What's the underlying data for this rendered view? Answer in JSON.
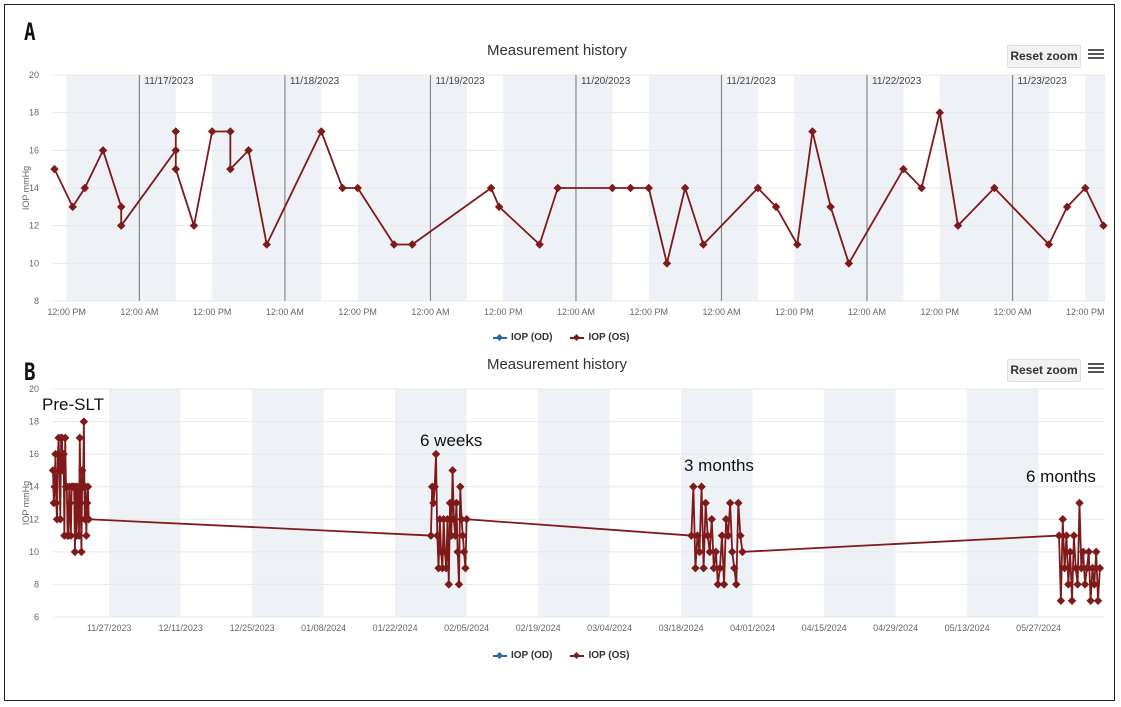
{
  "panels": [
    "A",
    "B"
  ],
  "colors": {
    "od": "#2b6a9e",
    "os": "#7f1a1a",
    "band": "#eef1f5",
    "grid": "#e8e8e8",
    "day_line": "#888888"
  },
  "chart_data": [
    {
      "type": "line",
      "title": "Measurement history",
      "ylabel": "IOP mmHg",
      "ylim": [
        8,
        20
      ],
      "yticks": [
        8,
        10,
        12,
        14,
        16,
        18,
        20
      ],
      "xlim": [
        "2023-11-16T09:45",
        "2023-11-23T15:15"
      ],
      "xtick_labels": [
        "12:00 PM",
        "12:00 AM",
        "12:00 PM",
        "12:00 AM",
        "12:00 PM",
        "12:00 AM",
        "12:00 PM",
        "12:00 AM",
        "12:00 PM",
        "12:00 AM",
        "12:00 PM",
        "12:00 AM",
        "12:00 PM",
        "12:00 AM",
        "12:00 PM"
      ],
      "date_labels": [
        "11/17/2023",
        "11/18/2023",
        "11/19/2023",
        "11/20/2023",
        "11/21/2023",
        "11/22/2023",
        "11/23/2023"
      ],
      "grid": true,
      "legend": {
        "position": "bottom",
        "entries": [
          "IOP (OD)",
          "IOP (OS)"
        ]
      },
      "reset_zoom_label": "Reset zoom",
      "series": [
        {
          "name": "IOP (OS)",
          "points": [
            [
              "2023-11-16T10:00",
              15
            ],
            [
              "2023-11-16T13:00",
              13
            ],
            [
              "2023-11-16T15:00",
              14
            ],
            [
              "2023-11-16T18:00",
              16
            ],
            [
              "2023-11-16T21:00",
              13
            ],
            [
              "2023-11-16T21:00",
              12
            ],
            [
              "2023-11-17T06:00",
              16
            ],
            [
              "2023-11-17T06:00",
              17
            ],
            [
              "2023-11-17T06:00",
              15
            ],
            [
              "2023-11-17T09:00",
              12
            ],
            [
              "2023-11-17T12:00",
              17
            ],
            [
              "2023-11-17T15:00",
              17
            ],
            [
              "2023-11-17T15:00",
              15
            ],
            [
              "2023-11-17T18:00",
              16
            ],
            [
              "2023-11-17T21:00",
              11
            ],
            [
              "2023-11-18T06:00",
              17
            ],
            [
              "2023-11-18T09:30",
              14
            ],
            [
              "2023-11-18T12:00",
              14
            ],
            [
              "2023-11-18T18:00",
              11
            ],
            [
              "2023-11-18T21:00",
              11
            ],
            [
              "2023-11-19T10:00",
              14
            ],
            [
              "2023-11-19T11:20",
              13
            ],
            [
              "2023-11-19T18:00",
              11
            ],
            [
              "2023-11-19T21:00",
              14
            ],
            [
              "2023-11-20T06:00",
              14
            ],
            [
              "2023-11-20T09:00",
              14
            ],
            [
              "2023-11-20T12:00",
              14
            ],
            [
              "2023-11-20T15:00",
              10
            ],
            [
              "2023-11-20T18:00",
              14
            ],
            [
              "2023-11-20T21:00",
              11
            ],
            [
              "2023-11-21T06:00",
              14
            ],
            [
              "2023-11-21T09:00",
              13
            ],
            [
              "2023-11-21T12:30",
              11
            ],
            [
              "2023-11-21T15:00",
              17
            ],
            [
              "2023-11-21T18:00",
              13
            ],
            [
              "2023-11-21T21:00",
              10
            ],
            [
              "2023-11-22T06:00",
              15
            ],
            [
              "2023-11-22T09:00",
              14
            ],
            [
              "2023-11-22T12:00",
              18
            ],
            [
              "2023-11-22T15:00",
              12
            ],
            [
              "2023-11-22T21:00",
              14
            ],
            [
              "2023-11-23T06:00",
              11
            ],
            [
              "2023-11-23T09:00",
              13
            ],
            [
              "2023-11-23T12:00",
              14
            ],
            [
              "2023-11-23T15:00",
              12
            ]
          ]
        },
        {
          "name": "IOP (OD)",
          "points": []
        }
      ]
    },
    {
      "type": "line",
      "title": "Measurement history",
      "ylabel": "IOP mmHg",
      "ylim": [
        6,
        20
      ],
      "yticks": [
        6,
        8,
        10,
        12,
        14,
        16,
        18,
        20
      ],
      "xlim": [
        "2023-11-16",
        "2024-06-09"
      ],
      "xtick_labels": [
        "11/27/2023",
        "12/11/2023",
        "12/25/2023",
        "01/08/2024",
        "01/22/2024",
        "02/05/2024",
        "02/19/2024",
        "03/04/2024",
        "03/18/2024",
        "04/01/2024",
        "04/15/2024",
        "04/29/2024",
        "05/13/2024",
        "05/27/2024"
      ],
      "grid": true,
      "legend": {
        "position": "bottom",
        "entries": [
          "IOP (OD)",
          "IOP (OS)"
        ]
      },
      "reset_zoom_label": "Reset zoom",
      "annotations": [
        {
          "text": "Pre-SLT",
          "date": "2023-11-16"
        },
        {
          "text": "6 weeks",
          "date": "2024-01-29"
        },
        {
          "text": "3 months",
          "date": "2024-03-20"
        },
        {
          "text": "6 months",
          "date": "2024-05-31"
        }
      ],
      "series": [
        {
          "name": "IOP (OS)",
          "sessions": [
            {
              "label": "Pre-SLT",
              "start": "2023-11-16",
              "end": "2023-11-23",
              "values": [
                15,
                13,
                14,
                16,
                13,
                12,
                16,
                17,
                15,
                12,
                17,
                17,
                15,
                16,
                11,
                17,
                14,
                14,
                11,
                11,
                14,
                13,
                11,
                14,
                14,
                14,
                14,
                10,
                14,
                11,
                14,
                13,
                11,
                17,
                13,
                10,
                15,
                14,
                18,
                12,
                14,
                11,
                13,
                14,
                12
              ]
            },
            {
              "label": "6 weeks",
              "start": "2024-01-29",
              "end": "2024-02-05",
              "values": [
                11,
                14,
                13,
                14,
                16,
                11,
                9,
                12,
                10,
                9,
                12,
                10,
                9,
                12,
                8,
                13,
                11,
                15,
                12,
                11,
                13,
                10,
                8,
                14,
                12,
                11,
                10,
                9,
                12
              ]
            },
            {
              "label": "3 months",
              "start": "2024-03-20",
              "end": "2024-03-30",
              "values": [
                11,
                14,
                9,
                11,
                10,
                14,
                9,
                13,
                11,
                10,
                12,
                9,
                10,
                8,
                9,
                11,
                8,
                12,
                11,
                13,
                10,
                9,
                8,
                13,
                11,
                10
              ]
            },
            {
              "label": "6 months",
              "start": "2024-05-31",
              "end": "2024-06-08",
              "values": [
                11,
                7,
                12,
                9,
                11,
                8,
                10,
                7,
                11,
                9,
                8,
                13,
                9,
                10,
                8,
                9,
                10,
                7,
                9,
                8,
                10,
                7,
                9
              ]
            }
          ]
        },
        {
          "name": "IOP (OD)",
          "sessions": []
        }
      ]
    }
  ]
}
